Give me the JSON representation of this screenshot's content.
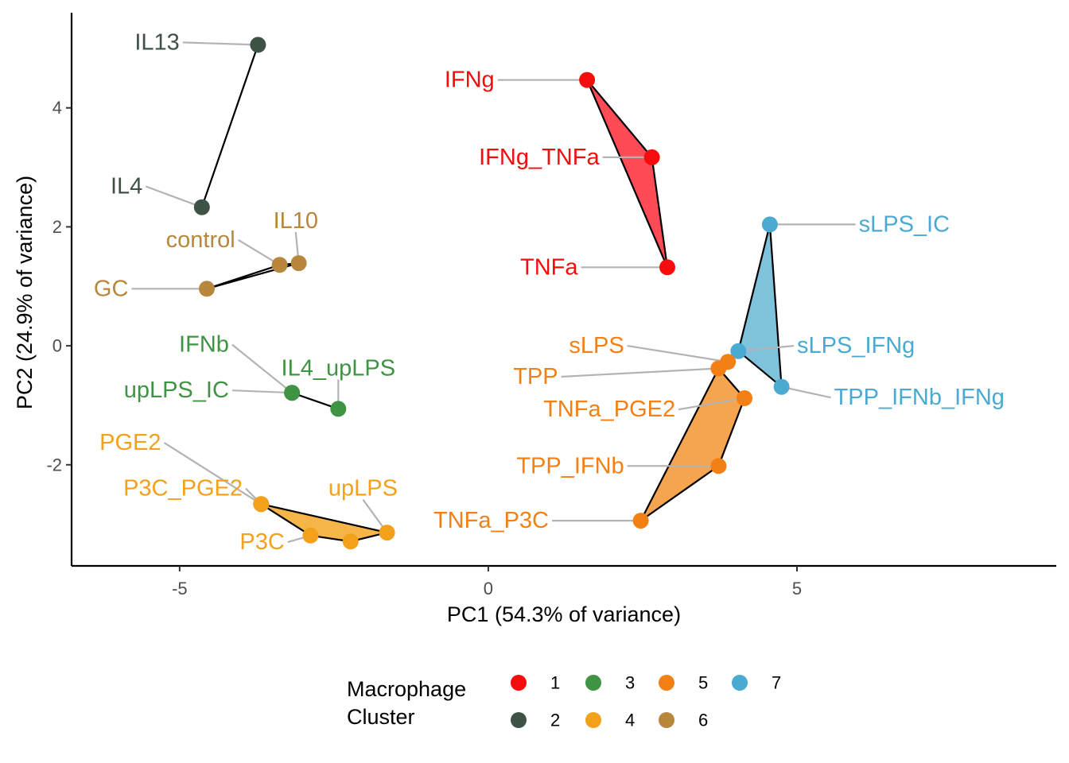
{
  "chart_data": {
    "type": "scatter",
    "xlabel": "PC1 (54.3% of variance)",
    "ylabel": "PC2 (24.9% of variance)",
    "xlim": [
      -6.75,
      9.2
    ],
    "ylim": [
      -3.7,
      5.6
    ],
    "x_ticks": [
      -5,
      0,
      5
    ],
    "y_ticks": [
      -2,
      0,
      2,
      4
    ],
    "grid": false,
    "legend": {
      "title_lines": [
        "Macrophage",
        "Cluster"
      ],
      "position": "bottom",
      "entries": [
        {
          "label": "1",
          "cluster": 1
        },
        {
          "label": "3",
          "cluster": 3
        },
        {
          "label": "5",
          "cluster": 5
        },
        {
          "label": "7",
          "cluster": 7
        },
        {
          "label": "2",
          "cluster": 2
        },
        {
          "label": "4",
          "cluster": 4
        },
        {
          "label": "6",
          "cluster": 6
        }
      ]
    },
    "cluster_colors": {
      "1": "#F60C0C",
      "2": "#3F5246",
      "3": "#3E9442",
      "4": "#F3A11B",
      "5": "#F38014",
      "6": "#B8863D",
      "7": "#4AAAD2"
    },
    "hull_fills": {
      "1": "#FF4B55",
      "4": "#F5B548",
      "5": "#F5A550",
      "7": "#7EC2DC"
    },
    "hulls": [
      {
        "cluster": 1,
        "vertices": [
          "IFNg",
          "IFNg_TNFa",
          "TNFa"
        ]
      },
      {
        "cluster": 2,
        "vertices": [
          "IL13",
          "IL4"
        ]
      },
      {
        "cluster": 6,
        "vertices": [
          "GC",
          "control",
          "IL10"
        ]
      },
      {
        "cluster": 3,
        "vertices": [
          "upLPS_IC",
          "IL4_upLPS"
        ]
      },
      {
        "cluster": 4,
        "vertices": [
          "P3C_PGE2",
          "upLPS",
          "PGE2_pt4",
          "P3C"
        ]
      },
      {
        "cluster": 5,
        "vertices": [
          "TPP",
          "TNFa_PGE2",
          "TPP_IFNb",
          "TNFa_P3C"
        ]
      },
      {
        "cluster": 7,
        "vertices": [
          "sLPS_IC",
          "TPP_IFNb_IFNg",
          "sLPS_IFNg"
        ]
      }
    ],
    "points": [
      {
        "id": "IL13",
        "label": "IL13",
        "x": -3.73,
        "y": 5.06,
        "cluster": 2,
        "lx": -5.0,
        "ly": 5.1,
        "anchor": "end"
      },
      {
        "id": "IL4",
        "label": "IL4",
        "x": -4.64,
        "y": 2.33,
        "cluster": 2,
        "lx": -5.6,
        "ly": 2.68,
        "anchor": "end"
      },
      {
        "id": "IL10",
        "label": "IL10",
        "x": -3.07,
        "y": 1.39,
        "cluster": 6,
        "lx": -3.12,
        "ly": 2.1,
        "anchor": "middle"
      },
      {
        "id": "control",
        "label": "control",
        "x": -3.38,
        "y": 1.36,
        "cluster": 6,
        "lx": -4.1,
        "ly": 1.78,
        "anchor": "end"
      },
      {
        "id": "GC",
        "label": "GC",
        "x": -4.56,
        "y": 0.96,
        "cluster": 6,
        "lx": -5.83,
        "ly": 0.96,
        "anchor": "end"
      },
      {
        "id": "IFNb",
        "label": "IFNb",
        "x": -3.18,
        "y": -0.79,
        "cluster": 3,
        "lx": -4.2,
        "ly": 0.02,
        "anchor": "end"
      },
      {
        "id": "IL4_upLPS",
        "label": "IL4_upLPS",
        "x": -2.43,
        "y": -1.06,
        "cluster": 3,
        "lx": -2.43,
        "ly": -0.38,
        "anchor": "middle"
      },
      {
        "id": "upLPS_IC",
        "label": "upLPS_IC",
        "x": -3.18,
        "y": -0.79,
        "cluster": 3,
        "lx": -4.2,
        "ly": -0.75,
        "anchor": "end"
      },
      {
        "id": "PGE2_pt4",
        "label": "",
        "x": -2.23,
        "y": -3.29,
        "cluster": 4,
        "lx": null,
        "ly": null,
        "anchor": "end"
      },
      {
        "id": "PGE2",
        "label": "PGE2",
        "x": -3.68,
        "y": -2.66,
        "cluster": 4,
        "lx": -5.3,
        "ly": -1.63,
        "anchor": "end"
      },
      {
        "id": "P3C_PGE2",
        "label": "P3C_PGE2",
        "x": -3.68,
        "y": -2.66,
        "cluster": 4,
        "lx": -3.98,
        "ly": -2.4,
        "anchor": "end"
      },
      {
        "id": "upLPS",
        "label": "upLPS",
        "x": -1.64,
        "y": -3.14,
        "cluster": 4,
        "lx": -2.03,
        "ly": -2.4,
        "anchor": "middle"
      },
      {
        "id": "P3C",
        "label": "P3C",
        "x": -2.88,
        "y": -3.19,
        "cluster": 4,
        "lx": -3.3,
        "ly": -3.3,
        "anchor": "end"
      },
      {
        "id": "IFNg",
        "label": "IFNg",
        "x": 1.6,
        "y": 4.47,
        "cluster": 1,
        "lx": 0.1,
        "ly": 4.47,
        "anchor": "end"
      },
      {
        "id": "IFNg_TNFa",
        "label": "IFNg_TNFa",
        "x": 2.65,
        "y": 3.17,
        "cluster": 1,
        "lx": 1.8,
        "ly": 3.17,
        "anchor": "end"
      },
      {
        "id": "TNFa",
        "label": "TNFa",
        "x": 2.9,
        "y": 1.32,
        "cluster": 1,
        "lx": 1.45,
        "ly": 1.32,
        "anchor": "end"
      },
      {
        "id": "sLPS_IC",
        "label": "sLPS_IC",
        "x": 4.56,
        "y": 2.04,
        "cluster": 7,
        "lx": 6.0,
        "ly": 2.04,
        "anchor": "start"
      },
      {
        "id": "sLPS_IFNg",
        "label": "sLPS_IFNg",
        "x": 4.05,
        "y": -0.09,
        "cluster": 7,
        "lx": 5.0,
        "ly": 0.0,
        "anchor": "start"
      },
      {
        "id": "TPP_IFNb_IFNg",
        "label": "TPP_IFNb_IFNg",
        "x": 4.75,
        "y": -0.69,
        "cluster": 7,
        "lx": 5.6,
        "ly": -0.87,
        "anchor": "start"
      },
      {
        "id": "sLPS",
        "label": "sLPS",
        "x": 3.88,
        "y": -0.27,
        "cluster": 5,
        "lx": 2.2,
        "ly": 0.0,
        "anchor": "end"
      },
      {
        "id": "TPP",
        "label": "TPP",
        "x": 3.73,
        "y": -0.38,
        "cluster": 5,
        "lx": 1.13,
        "ly": -0.52,
        "anchor": "end"
      },
      {
        "id": "TNFa_PGE2",
        "label": "TNFa_PGE2",
        "x": 4.15,
        "y": -0.88,
        "cluster": 5,
        "lx": 3.03,
        "ly": -1.07,
        "anchor": "end"
      },
      {
        "id": "TPP_IFNb",
        "label": "TPP_IFNb",
        "x": 3.73,
        "y": -2.02,
        "cluster": 5,
        "lx": 2.2,
        "ly": -2.02,
        "anchor": "end"
      },
      {
        "id": "TNFa_P3C",
        "label": "TNFa_P3C",
        "x": 2.47,
        "y": -2.94,
        "cluster": 5,
        "lx": 0.98,
        "ly": -2.94,
        "anchor": "end"
      }
    ]
  }
}
